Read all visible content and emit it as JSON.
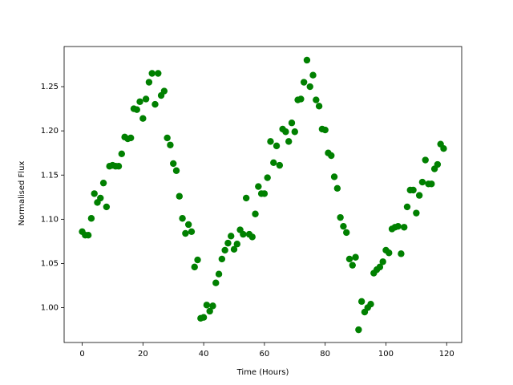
{
  "chart_data": {
    "type": "scatter",
    "xlabel": "Time (Hours)",
    "ylabel": "Normalised Flux",
    "color": "green",
    "x": [
      0,
      1,
      2,
      3,
      4,
      5,
      6,
      7,
      8,
      9,
      10,
      11,
      12,
      13,
      14,
      15,
      16,
      17,
      18,
      19,
      20,
      21,
      22,
      23,
      24,
      25,
      26,
      27,
      28,
      29,
      30,
      31,
      32,
      33,
      34,
      35,
      36,
      37,
      38,
      39,
      40,
      41,
      42,
      43,
      44,
      45,
      46,
      47,
      48,
      49,
      50,
      51,
      52,
      53,
      54,
      55,
      56,
      57,
      58,
      59,
      60,
      61,
      62,
      63,
      64,
      65,
      66,
      67,
      68,
      69,
      70,
      71,
      72,
      73,
      74,
      75,
      76,
      77,
      78,
      79,
      80,
      81,
      82,
      83,
      84,
      85,
      86,
      87,
      88,
      89,
      90,
      91,
      92,
      93,
      94,
      95,
      96,
      97,
      98,
      99,
      100,
      101,
      102,
      103,
      104,
      105,
      106,
      107,
      108,
      109,
      110,
      111,
      112,
      113,
      114,
      115,
      116,
      117,
      118,
      119
    ],
    "values": [
      1.086,
      1.082,
      1.082,
      1.101,
      1.129,
      1.119,
      1.124,
      1.141,
      1.114,
      1.16,
      1.161,
      1.16,
      1.16,
      1.174,
      1.193,
      1.191,
      1.192,
      1.225,
      1.224,
      1.233,
      1.214,
      1.236,
      1.255,
      1.265,
      1.23,
      1.265,
      1.24,
      1.245,
      1.192,
      1.184,
      1.163,
      1.155,
      1.126,
      1.101,
      1.084,
      1.094,
      1.086,
      1.046,
      1.054,
      0.988,
      0.989,
      1.003,
      0.996,
      1.002,
      1.028,
      1.038,
      1.055,
      1.065,
      1.073,
      1.081,
      1.066,
      1.072,
      1.088,
      1.083,
      1.124,
      1.083,
      1.08,
      1.106,
      1.137,
      1.129,
      1.129,
      1.147,
      1.188,
      1.164,
      1.183,
      1.161,
      1.202,
      1.199,
      1.188,
      1.209,
      1.199,
      1.235,
      1.236,
      1.255,
      1.28,
      1.25,
      1.263,
      1.235,
      1.228,
      1.202,
      1.201,
      1.175,
      1.172,
      1.148,
      1.135,
      1.102,
      1.092,
      1.085,
      1.055,
      1.048,
      1.057,
      0.975,
      1.007,
      0.995,
      1.0,
      1.004,
      1.039,
      1.043,
      1.046,
      1.052,
      1.065,
      1.062,
      1.089,
      1.091,
      1.092,
      1.061,
      1.091,
      1.114,
      1.133,
      1.133,
      1.107,
      1.127,
      1.142,
      1.167,
      1.14,
      1.14,
      1.157,
      1.162,
      1.185,
      1.18
    ],
    "xlim": [
      -5.95,
      124.95
    ],
    "ylim": [
      0.9606,
      1.2954
    ],
    "xticks": [
      0,
      20,
      40,
      60,
      80,
      100,
      120
    ],
    "yticks": [
      {
        "value": 1.0,
        "label": "1.00"
      },
      1.05,
      {
        "value": 1.1,
        "label": "1.10"
      },
      1.15,
      {
        "value": 1.2,
        "label": "1.20"
      },
      1.25
    ]
  }
}
